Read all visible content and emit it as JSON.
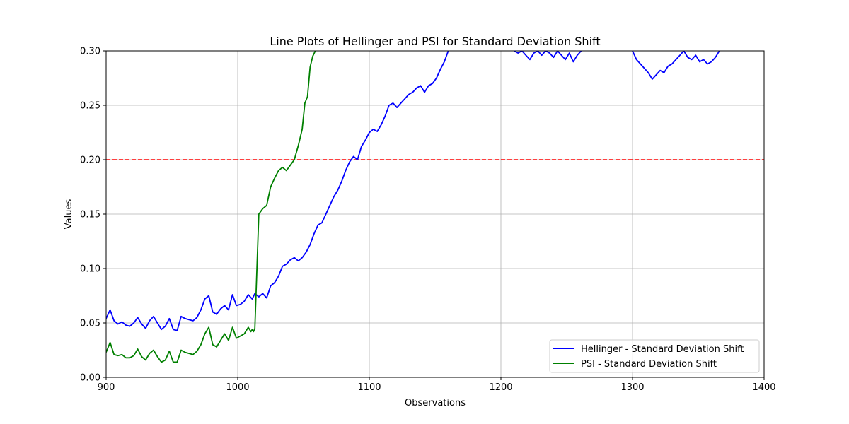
{
  "chart_data": {
    "type": "line",
    "title": "Line Plots of Hellinger and PSI for Standard Deviation Shift",
    "xlabel": "Observations",
    "ylabel": "Values",
    "xlim": [
      900,
      1400
    ],
    "ylim": [
      0.0,
      0.3
    ],
    "xticks": [
      900,
      1000,
      1100,
      1200,
      1300,
      1400
    ],
    "xtick_labels": [
      "900",
      "1000",
      "1100",
      "1200",
      "1300",
      "1400"
    ],
    "yticks": [
      0.0,
      0.05,
      0.1,
      0.15,
      0.2,
      0.25,
      0.3
    ],
    "ytick_labels": [
      "0.00",
      "0.05",
      "0.10",
      "0.15",
      "0.20",
      "0.25",
      "0.30"
    ],
    "grid": true,
    "legend_position": "lower-right",
    "threshold": {
      "y": 0.2,
      "color": "#ff0000",
      "style": "dashed"
    },
    "series": [
      {
        "name": "Hellinger - Standard Deviation Shift",
        "color": "#0000ff",
        "x": [
          900,
          903,
          906,
          909,
          912,
          915,
          918,
          921,
          924,
          927,
          930,
          933,
          936,
          939,
          942,
          945,
          948,
          951,
          954,
          957,
          960,
          963,
          966,
          969,
          972,
          975,
          978,
          981,
          984,
          987,
          990,
          993,
          996,
          999,
          1002,
          1005,
          1008,
          1011,
          1013,
          1016,
          1019,
          1022,
          1025,
          1028,
          1031,
          1034,
          1037,
          1040,
          1043,
          1046,
          1049,
          1052,
          1055,
          1058,
          1061,
          1064,
          1067,
          1070,
          1073,
          1076,
          1079,
          1082,
          1085,
          1088,
          1091,
          1094,
          1097,
          1100,
          1103,
          1106,
          1109,
          1112,
          1115,
          1118,
          1121,
          1124,
          1127,
          1130,
          1133,
          1136,
          1139,
          1142,
          1145,
          1148,
          1151,
          1154,
          1157,
          1160,
          1210,
          1213,
          1216,
          1219,
          1222,
          1225,
          1228,
          1231,
          1234,
          1237,
          1240,
          1243,
          1246,
          1249,
          1252,
          1255,
          1258,
          1261,
          1300,
          1303,
          1306,
          1309,
          1312,
          1315,
          1318,
          1321,
          1324,
          1327,
          1330,
          1333,
          1336,
          1339,
          1342,
          1345,
          1348,
          1351,
          1354,
          1357,
          1360,
          1363,
          1366
        ],
        "y": [
          0.054,
          0.062,
          0.052,
          0.049,
          0.051,
          0.048,
          0.047,
          0.05,
          0.055,
          0.049,
          0.045,
          0.052,
          0.056,
          0.05,
          0.044,
          0.047,
          0.054,
          0.044,
          0.043,
          0.056,
          0.054,
          0.053,
          0.052,
          0.055,
          0.062,
          0.072,
          0.075,
          0.06,
          0.058,
          0.063,
          0.066,
          0.062,
          0.076,
          0.066,
          0.067,
          0.07,
          0.076,
          0.072,
          0.077,
          0.074,
          0.077,
          0.073,
          0.084,
          0.087,
          0.093,
          0.102,
          0.104,
          0.108,
          0.11,
          0.107,
          0.11,
          0.115,
          0.122,
          0.132,
          0.14,
          0.142,
          0.15,
          0.158,
          0.166,
          0.172,
          0.18,
          0.19,
          0.198,
          0.203,
          0.2,
          0.212,
          0.218,
          0.225,
          0.228,
          0.226,
          0.232,
          0.24,
          0.25,
          0.252,
          0.248,
          0.252,
          0.256,
          0.26,
          0.262,
          0.266,
          0.268,
          0.262,
          0.268,
          0.27,
          0.275,
          0.283,
          0.29,
          0.3,
          0.3,
          0.298,
          0.3,
          0.296,
          0.292,
          0.298,
          0.3,
          0.296,
          0.3,
          0.298,
          0.294,
          0.3,
          0.296,
          0.292,
          0.298,
          0.29,
          0.296,
          0.3,
          0.3,
          0.292,
          0.288,
          0.284,
          0.28,
          0.274,
          0.278,
          0.282,
          0.28,
          0.286,
          0.288,
          0.292,
          0.296,
          0.3,
          0.294,
          0.292,
          0.296,
          0.29,
          0.292,
          0.288,
          0.29,
          0.294,
          0.3
        ],
        "break_after_index": [
          87,
          105
        ]
      },
      {
        "name": "PSI - Standard Deviation Shift",
        "color": "#008000",
        "x": [
          900,
          903,
          906,
          909,
          912,
          915,
          918,
          921,
          924,
          927,
          930,
          933,
          936,
          939,
          942,
          945,
          948,
          951,
          954,
          957,
          960,
          963,
          966,
          969,
          972,
          975,
          978,
          981,
          984,
          987,
          990,
          993,
          996,
          999,
          1002,
          1005,
          1008,
          1010,
          1011,
          1012,
          1013,
          1016,
          1019,
          1022,
          1025,
          1028,
          1031,
          1034,
          1037,
          1040,
          1043,
          1046,
          1049,
          1051,
          1053,
          1055,
          1057,
          1059
        ],
        "y": [
          0.023,
          0.032,
          0.021,
          0.02,
          0.021,
          0.018,
          0.018,
          0.02,
          0.026,
          0.019,
          0.016,
          0.022,
          0.025,
          0.019,
          0.014,
          0.016,
          0.024,
          0.014,
          0.014,
          0.025,
          0.023,
          0.022,
          0.021,
          0.024,
          0.03,
          0.04,
          0.046,
          0.03,
          0.028,
          0.034,
          0.04,
          0.034,
          0.046,
          0.036,
          0.038,
          0.04,
          0.046,
          0.042,
          0.044,
          0.042,
          0.045,
          0.15,
          0.155,
          0.158,
          0.175,
          0.183,
          0.19,
          0.193,
          0.19,
          0.195,
          0.2,
          0.213,
          0.228,
          0.252,
          0.258,
          0.285,
          0.295,
          0.3
        ]
      }
    ]
  }
}
